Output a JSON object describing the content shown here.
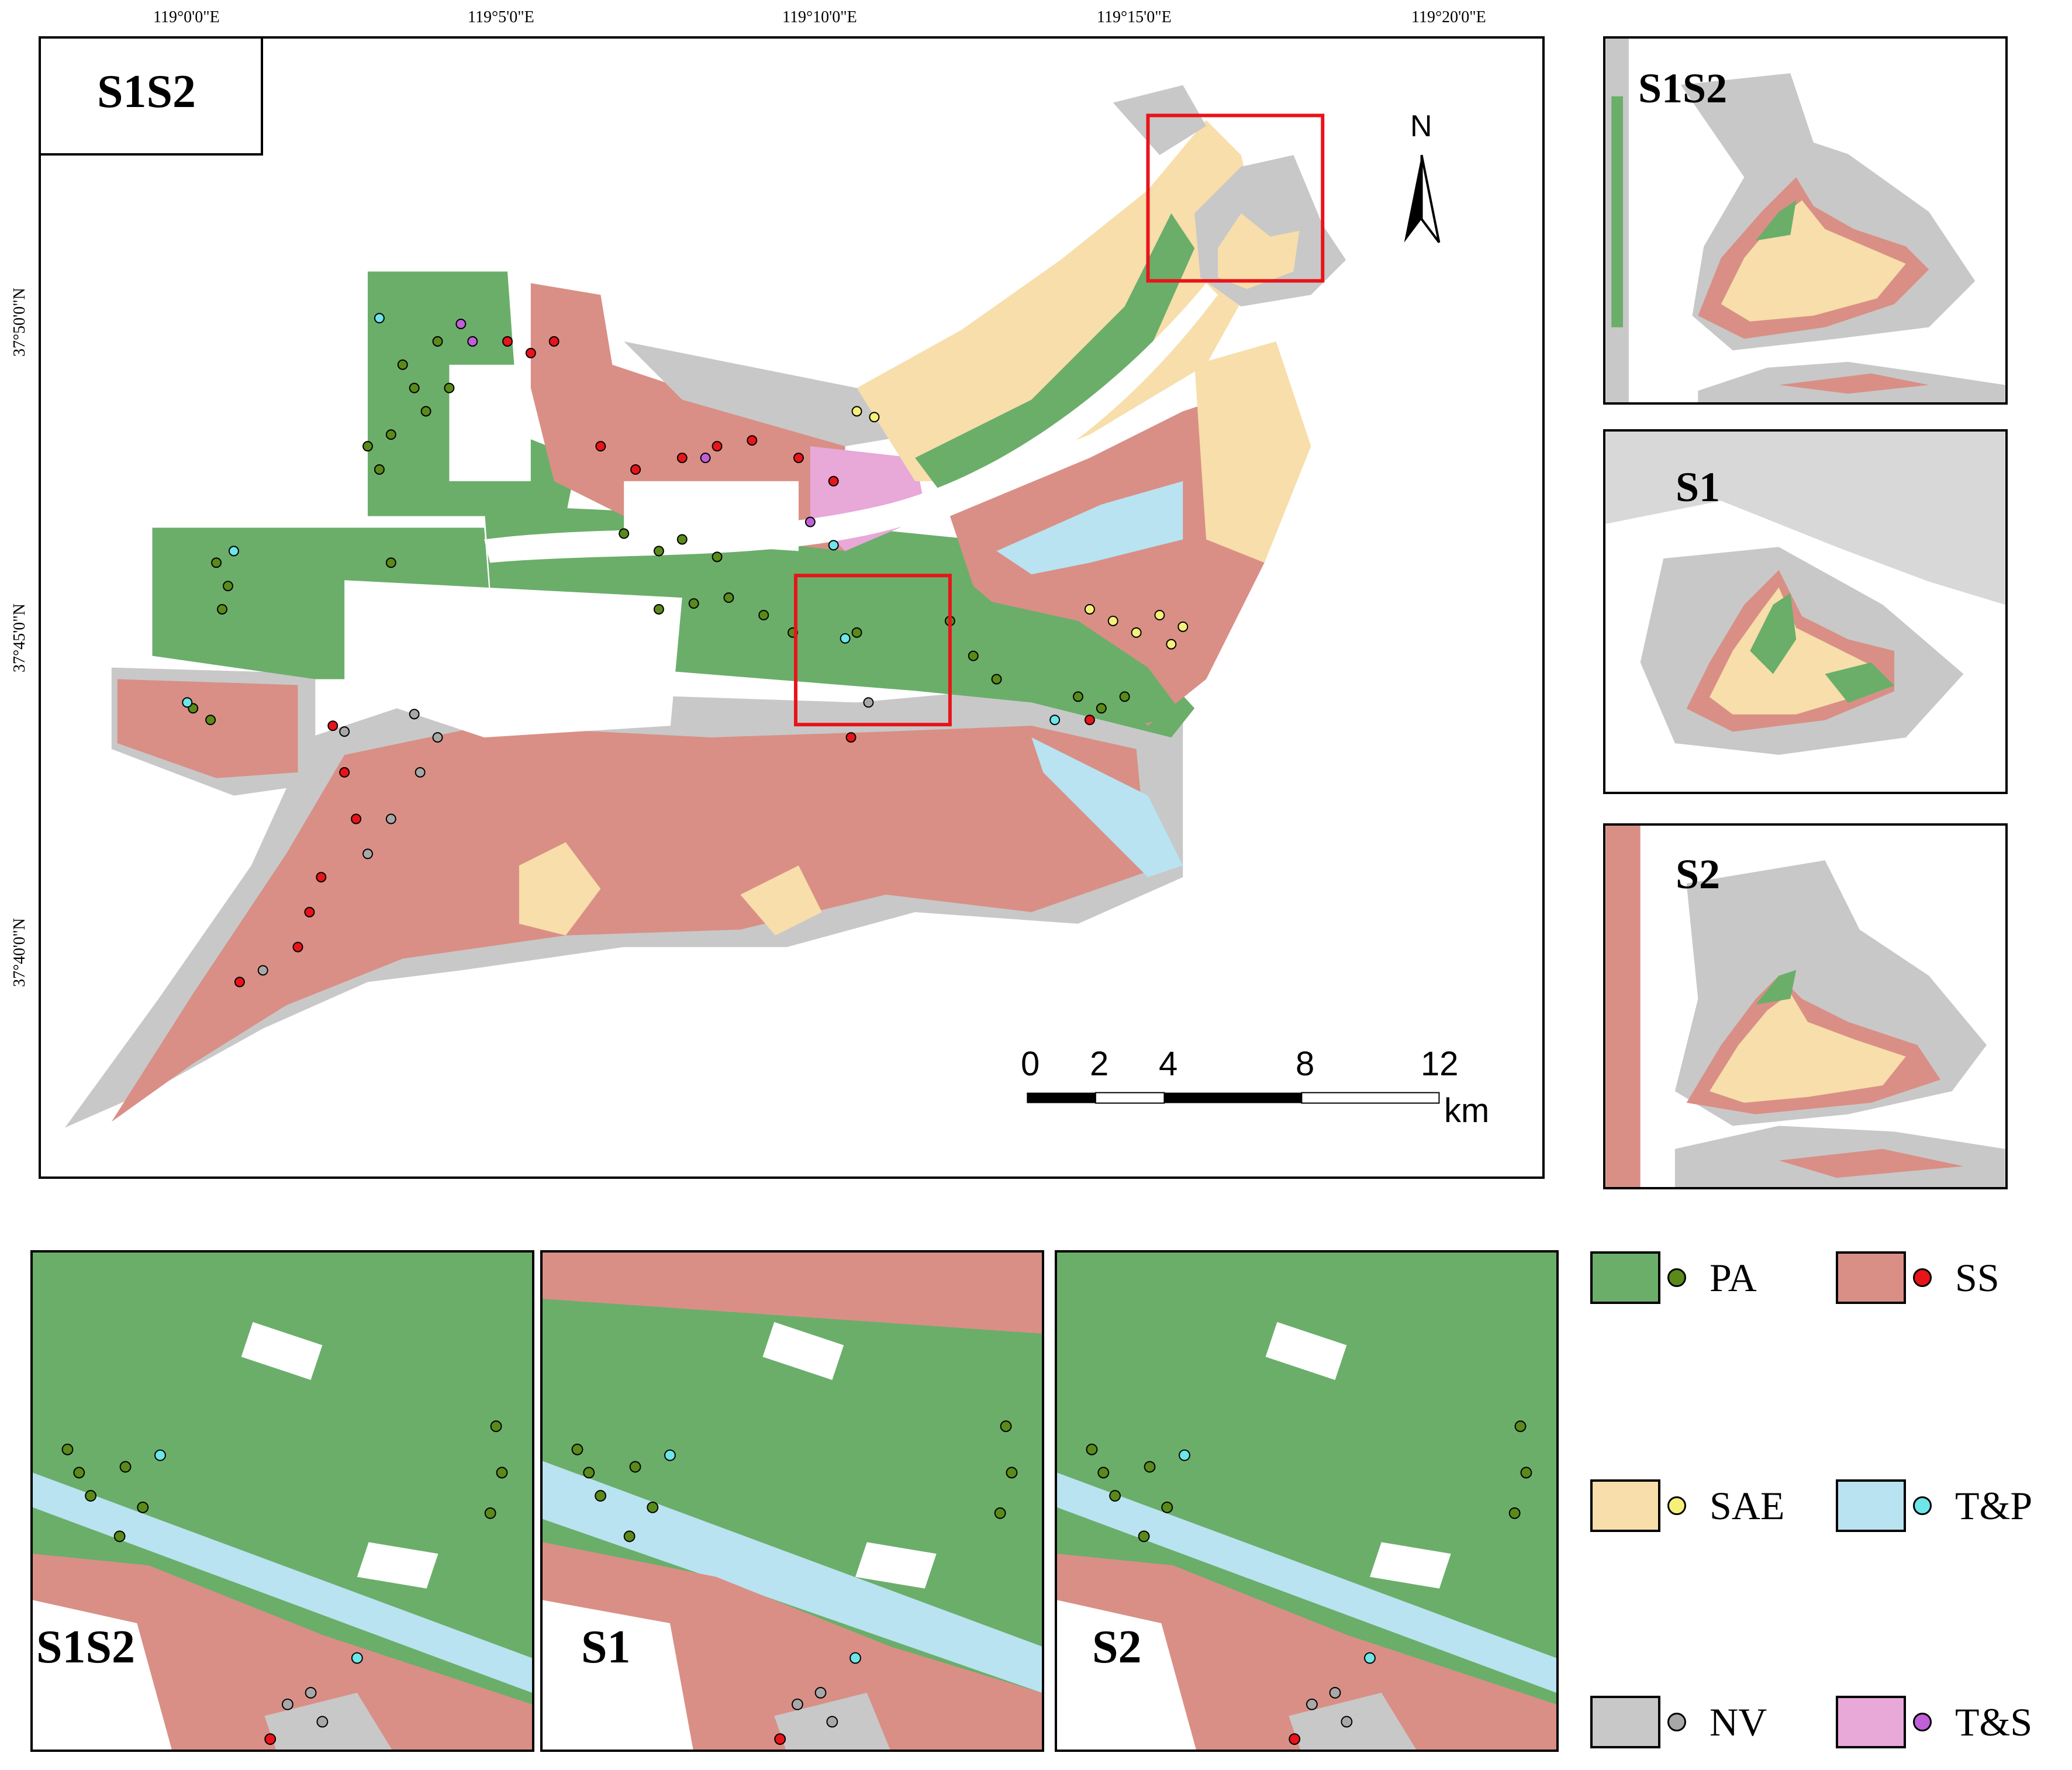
{
  "main_map": {
    "title": "S1S2",
    "lon_ticks": [
      "119°0'0\"E",
      "119°5'0\"E",
      "119°10'0\"E",
      "119°15'0\"E",
      "119°20'0\"E"
    ],
    "lat_ticks": [
      "37°50'0\"N",
      "37°45'0\"N",
      "37°40'0\"N"
    ],
    "north_label": "N",
    "scale_numbers": [
      "0",
      "2",
      "4",
      "8",
      "12"
    ],
    "scale_unit": "km",
    "highlight_color": "#e8141a"
  },
  "right_insets": [
    {
      "label": "S1S2"
    },
    {
      "label": "S1"
    },
    {
      "label": "S2"
    }
  ],
  "bottom_insets": [
    {
      "label": "S1S2"
    },
    {
      "label": "S1"
    },
    {
      "label": "S2"
    }
  ],
  "legend": [
    {
      "label": "PA",
      "swatch_color": "#6aae6a",
      "dot_color": "#5a8a1a"
    },
    {
      "label": "SS",
      "swatch_color": "#d98f86",
      "dot_color": "#e8141a"
    },
    {
      "label": "SAE",
      "swatch_color": "#f7deaa",
      "dot_color": "#f5f07a"
    },
    {
      "label": "T&P",
      "swatch_color": "#b9e3f0",
      "dot_color": "#6ee5e8"
    },
    {
      "label": "NV",
      "swatch_color": "#c8c8c8",
      "dot_color": "#a8a8a8"
    },
    {
      "label": "T&S",
      "swatch_color": "#e8a8d8",
      "dot_color": "#c060d8"
    }
  ]
}
